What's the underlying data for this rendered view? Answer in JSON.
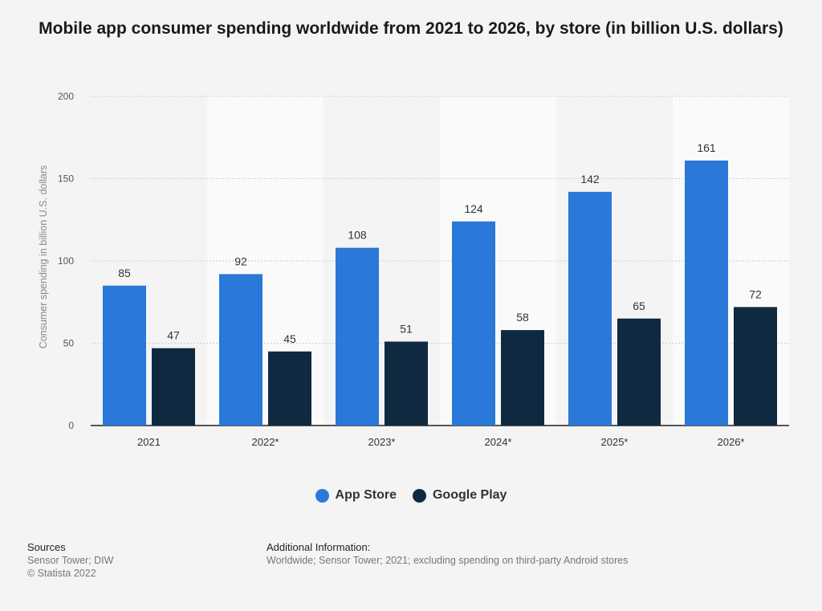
{
  "chart_data": {
    "type": "bar",
    "title": "Mobile app consumer spending worldwide from 2021 to 2026, by store (in billion U.S. dollars)",
    "xlabel": "",
    "ylabel": "Consumer spending in billion U.S. dollars",
    "ylim": [
      0,
      200
    ],
    "yticks": [
      0,
      50,
      100,
      150,
      200
    ],
    "categories": [
      "2021",
      "2022*",
      "2023*",
      "2024*",
      "2025*",
      "2026*"
    ],
    "series": [
      {
        "name": "App Store",
        "color": "#2a78d8",
        "values": [
          85,
          92,
          108,
          124,
          142,
          161
        ]
      },
      {
        "name": "Google Play",
        "color": "#0f2a40",
        "values": [
          47,
          45,
          51,
          58,
          65,
          72
        ]
      }
    ],
    "grid": true,
    "legend_position": "bottom-center"
  },
  "legend": {
    "items": [
      {
        "label": "App Store",
        "color": "#2a78d8"
      },
      {
        "label": "Google Play",
        "color": "#0f2a40"
      }
    ]
  },
  "footer": {
    "sources_heading": "Sources",
    "sources_lines": [
      "Sensor Tower; DIW",
      "© Statista 2022"
    ],
    "additional_heading": "Additional Information:",
    "additional_text": "Worldwide; Sensor Tower; 2021; excluding spending on third-party Android stores"
  }
}
